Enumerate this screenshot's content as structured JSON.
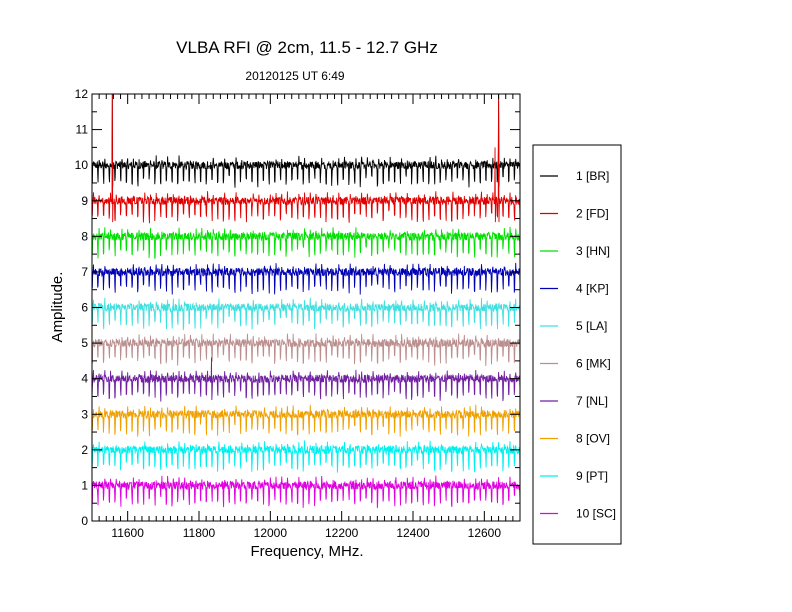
{
  "chart_data": {
    "type": "line",
    "title": "VLBA RFI @ 2cm, 11.5 - 12.7 GHz",
    "subtitle": "20120125   UT 6:49",
    "xlabel": "Frequency, MHz.",
    "ylabel": "Amplitude.",
    "xlim": [
      11500,
      12700
    ],
    "ylim": [
      0,
      12
    ],
    "x_ticks": [
      11600,
      11800,
      12000,
      12200,
      12400,
      12600
    ],
    "y_ticks": [
      0,
      1,
      2,
      3,
      4,
      5,
      6,
      7,
      8,
      9,
      10,
      11,
      12
    ],
    "grid": false,
    "legend_position": "right",
    "channel_spacing_mhz": 16,
    "series": [
      {
        "name": "1 [BR]",
        "color": "#000000",
        "baseline": 10,
        "spikes": [
          [
            11557,
            12.0
          ],
          [
            12640,
            12.0
          ]
        ]
      },
      {
        "name": "2 [FD]",
        "color": "#e00000",
        "baseline": 9,
        "spikes": [
          [
            11557,
            12.0
          ],
          [
            12640,
            12.0
          ],
          [
            12630,
            10.5
          ]
        ]
      },
      {
        "name": "3 [HN]",
        "color": "#00e000",
        "baseline": 8,
        "spikes": []
      },
      {
        "name": "4 [KP]",
        "color": "#0000b4",
        "baseline": 7,
        "spikes": []
      },
      {
        "name": "5 [LA]",
        "color": "#40e0e0",
        "baseline": 6,
        "spikes": []
      },
      {
        "name": "6 [MK]",
        "color": "#bc8f8f",
        "baseline": 5,
        "spikes": []
      },
      {
        "name": "7 [NL]",
        "color": "#7020a0",
        "baseline": 4,
        "spikes": [
          [
            11835,
            4.6
          ]
        ]
      },
      {
        "name": "8 [OV]",
        "color": "#f0a000",
        "baseline": 3,
        "spikes": []
      },
      {
        "name": "9 [PT]",
        "color": "#00f0f0",
        "baseline": 2,
        "spikes": []
      },
      {
        "name": "10 [SC]",
        "color": "#e000e0",
        "baseline": 1,
        "spikes": []
      }
    ]
  }
}
